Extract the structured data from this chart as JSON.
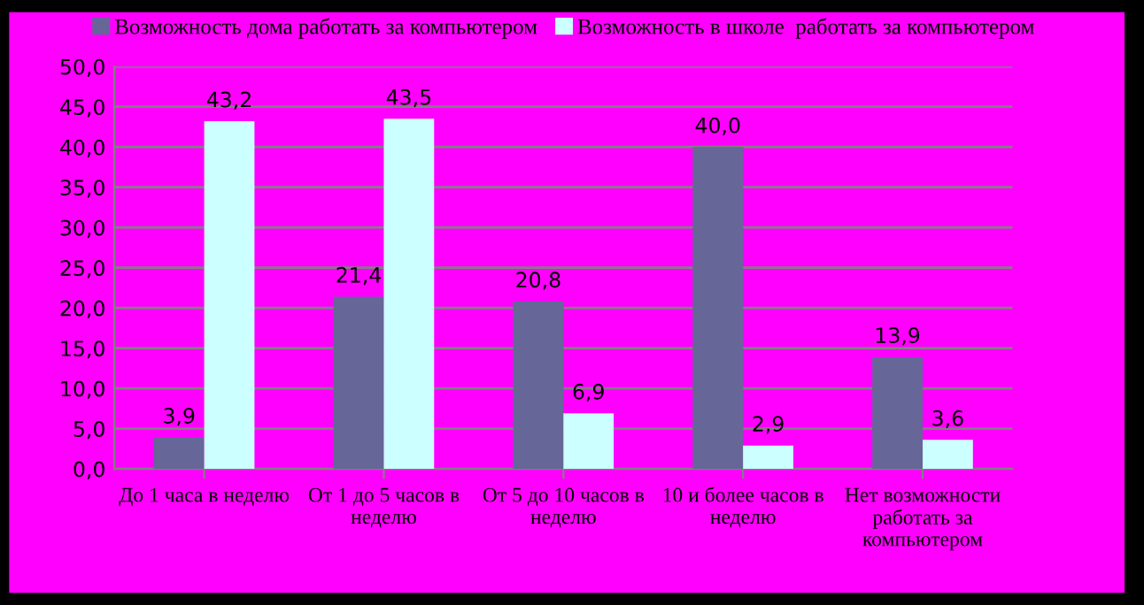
{
  "chart_data": {
    "type": "bar",
    "categories": [
      "До 1 часа в неделю",
      "От 1 до 5 часов в\nнеделю",
      "От 5 до 10 часов в\nнеделю",
      "10 и более часов в\nнеделю",
      "Нет возможности\nработать за\nкомпьютером"
    ],
    "series": [
      {
        "name": "Возможность дома работать за компьютером",
        "color": "#666699",
        "values": [
          3.9,
          21.4,
          20.8,
          40.0,
          13.9
        ],
        "value_labels": [
          "3,9",
          "21,4",
          "20,8",
          "40,0",
          "13,9"
        ]
      },
      {
        "name": "Возможность в школе  работать за компьютером",
        "color": "#ccffff",
        "values": [
          43.2,
          43.5,
          6.9,
          2.9,
          3.6
        ],
        "value_labels": [
          "43,2",
          "43,5",
          "6,9",
          "2,9",
          "3,6"
        ]
      }
    ],
    "ylim": [
      0,
      50
    ],
    "yticks": [
      {
        "value": 0,
        "label": "0,0"
      },
      {
        "value": 5,
        "label": "5,0"
      },
      {
        "value": 10,
        "label": "10,0"
      },
      {
        "value": 15,
        "label": "15,0"
      },
      {
        "value": 20,
        "label": "20,0"
      },
      {
        "value": 25,
        "label": "25,0"
      },
      {
        "value": 30,
        "label": "30,0"
      },
      {
        "value": 35,
        "label": "35,0"
      },
      {
        "value": 40,
        "label": "40,0"
      },
      {
        "value": 45,
        "label": "45,0"
      },
      {
        "value": 50,
        "label": "50,0"
      }
    ],
    "grid": "y",
    "legend": "top"
  }
}
